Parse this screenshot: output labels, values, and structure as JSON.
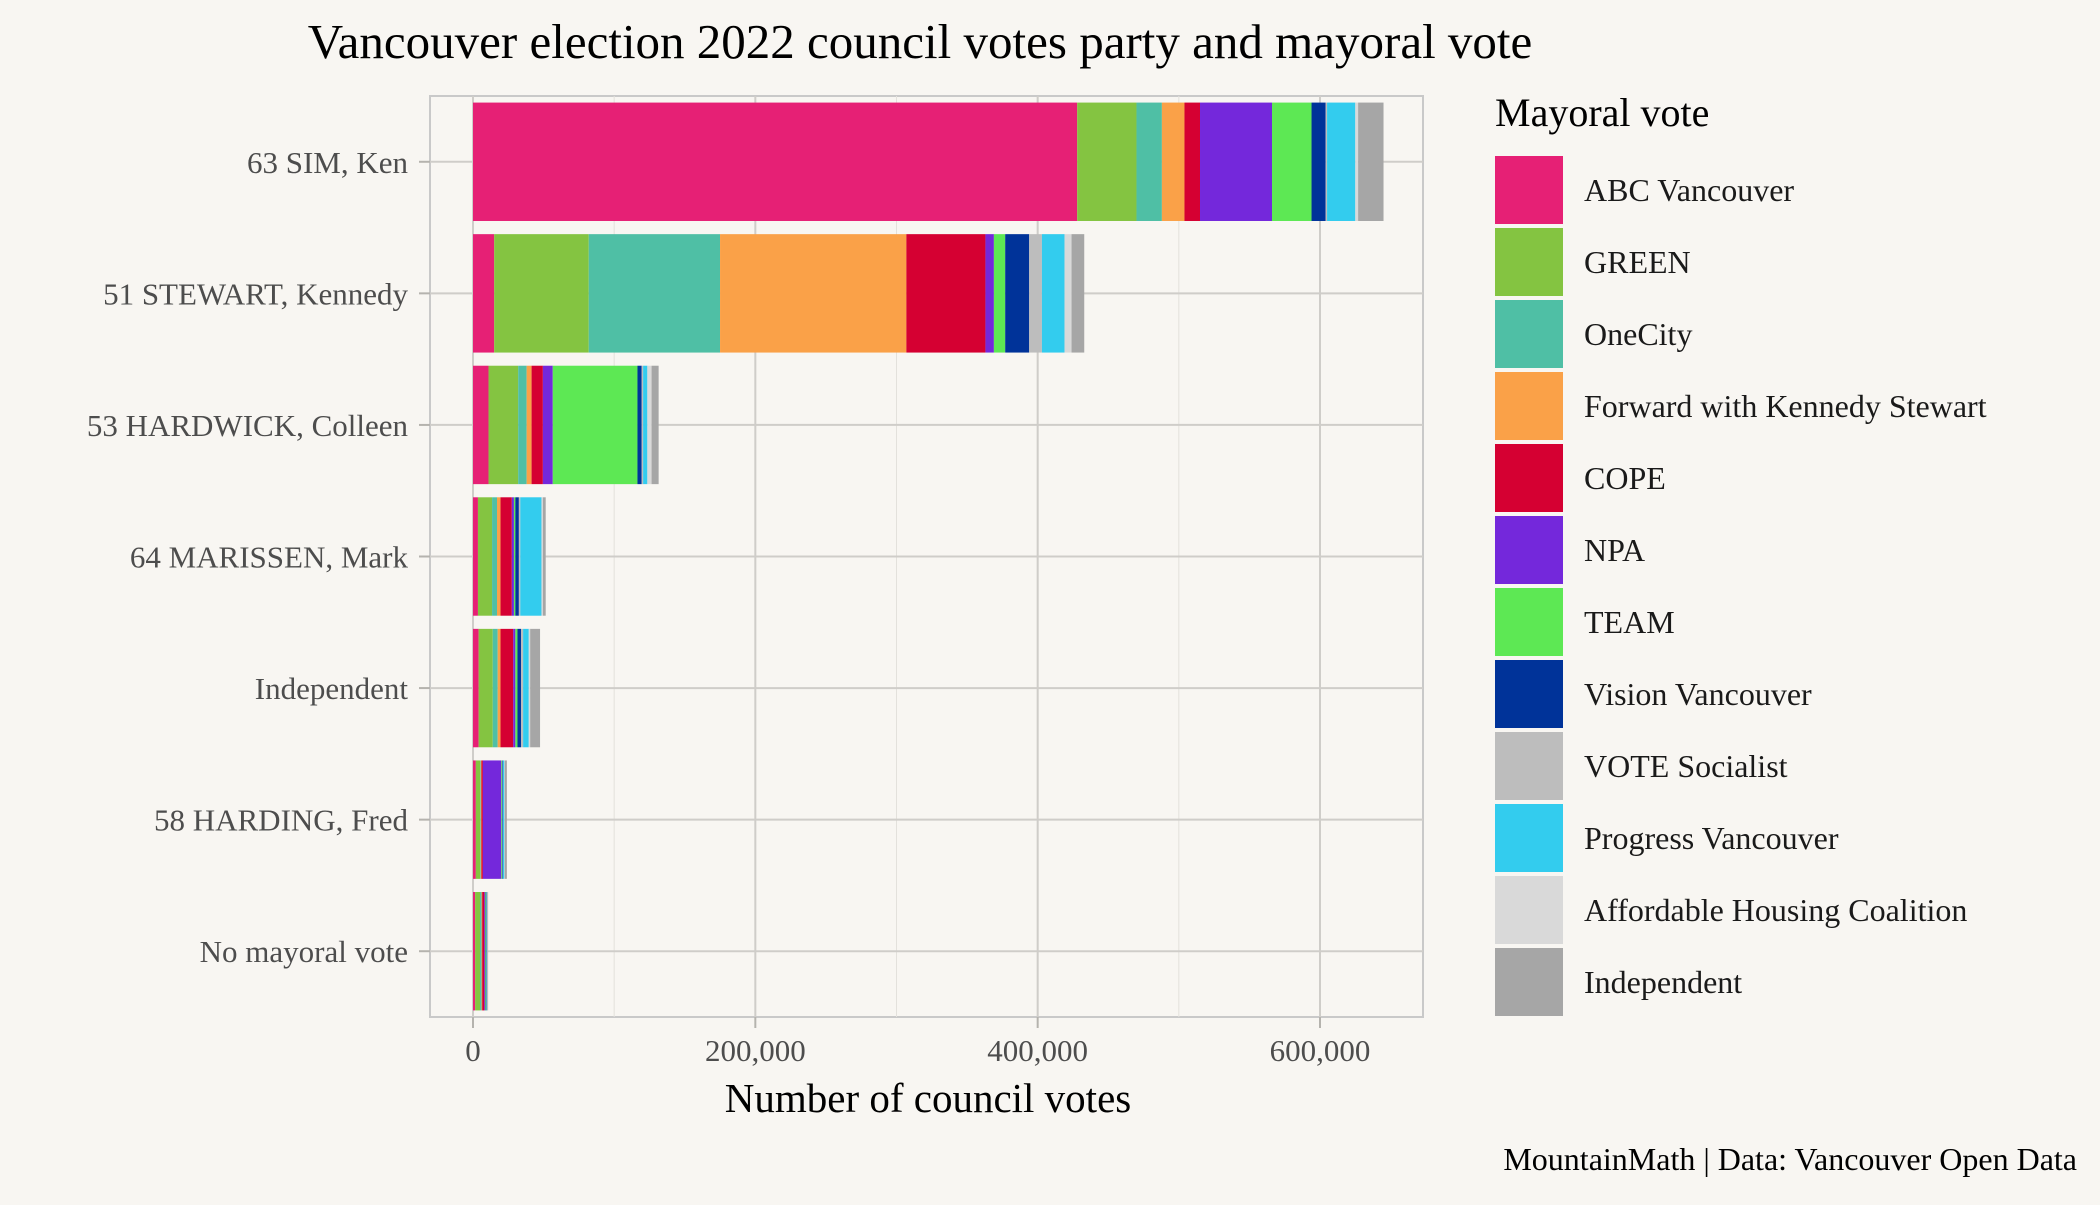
{
  "chart_data": {
    "type": "bar",
    "orientation": "horizontal",
    "stacked": true,
    "title": "Vancouver election 2022 council votes party and mayoral vote",
    "xlabel": "Number of council votes",
    "ylabel": "",
    "xlim": [
      -15000,
      670000
    ],
    "x_ticks": [
      0,
      200000,
      400000,
      600000
    ],
    "x_tick_labels": [
      "0",
      "200,000",
      "400,000",
      "600,000"
    ],
    "grid": true,
    "legend_title": "Mayoral vote",
    "legend_position": "right",
    "caption": "MountainMath | Data: Vancouver Open Data",
    "categories": [
      "63 SIM, Ken",
      "51 STEWART, Kennedy",
      "53 HARDWICK, Colleen",
      "64 MARISSEN, Mark",
      "Independent",
      "58 HARDING, Fred",
      "No mayoral vote"
    ],
    "series": [
      {
        "name": "ABC Vancouver",
        "color": "#e62075",
        "values": [
          428000,
          15000,
          11000,
          3500,
          4000,
          2000,
          1500
        ]
      },
      {
        "name": "GREEN",
        "color": "#84c441",
        "values": [
          42000,
          67000,
          21000,
          10000,
          10000,
          3000,
          3500
        ]
      },
      {
        "name": "OneCity",
        "color": "#4fbfa5",
        "values": [
          18000,
          93000,
          6000,
          3500,
          3500,
          500,
          1000
        ]
      },
      {
        "name": "Forward with Kennedy Stewart",
        "color": "#faa148",
        "values": [
          16000,
          132000,
          3500,
          2500,
          2000,
          500,
          500
        ]
      },
      {
        "name": "COPE",
        "color": "#d50032",
        "values": [
          11000,
          56000,
          8000,
          8000,
          9000,
          1000,
          1500
        ]
      },
      {
        "name": "NPA",
        "color": "#7428db",
        "values": [
          51000,
          6000,
          7000,
          1500,
          1500,
          13000,
          500
        ]
      },
      {
        "name": "TEAM",
        "color": "#5de854",
        "values": [
          28000,
          8000,
          60000,
          1000,
          1500,
          500,
          500
        ]
      },
      {
        "name": "Vision Vancouver",
        "color": "#003399",
        "values": [
          10000,
          17000,
          3000,
          2500,
          2500,
          500,
          500
        ]
      },
      {
        "name": "VOTE Socialist",
        "color": "#bdbdbd",
        "values": [
          1000,
          9000,
          1000,
          1000,
          1500,
          200,
          200
        ]
      },
      {
        "name": "Progress Vancouver",
        "color": "#33ccee",
        "values": [
          20000,
          16000,
          3000,
          15000,
          4000,
          1000,
          300
        ]
      },
      {
        "name": "Affordable Housing Coalition",
        "color": "#d9d9d9",
        "values": [
          2000,
          5000,
          3000,
          1000,
          1000,
          300,
          200
        ]
      },
      {
        "name": "Independent",
        "color": "#a6a6a6",
        "values": [
          18000,
          9000,
          5000,
          2000,
          7000,
          1500,
          500
        ]
      }
    ]
  }
}
